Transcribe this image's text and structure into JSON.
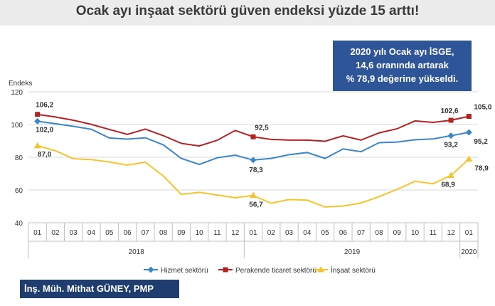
{
  "headline": "Ocak ayı inşaat sektörü güven endeksi yüzde 15 arttı!",
  "callout": [
    "2020 yılı Ocak ayı İSGE,",
    "14,6 oranında artarak",
    "% 78,9 değerine yükseldi."
  ],
  "author": "İnş. Müh. Mithat GÜNEY, PMP",
  "chart_data": {
    "type": "line",
    "ylabel": "Endeks",
    "ylim": [
      40,
      120
    ],
    "yticks": [
      40,
      60,
      80,
      100,
      120
    ],
    "categories": [
      "01",
      "02",
      "03",
      "04",
      "05",
      "06",
      "07",
      "08",
      "09",
      "10",
      "11",
      "12",
      "01",
      "02",
      "03",
      "04",
      "05",
      "06",
      "07",
      "08",
      "09",
      "10",
      "11",
      "12",
      "01"
    ],
    "year_groups": [
      {
        "label": "2018",
        "start": 0,
        "end": 11
      },
      {
        "label": "2019",
        "start": 12,
        "end": 23
      },
      {
        "label": "2020",
        "start": 24,
        "end": 24
      }
    ],
    "grid": true,
    "legend_position": "bottom",
    "series": [
      {
        "name": "Hizmet sektörü",
        "color": "#3d85c6",
        "marker": "diamond",
        "values": [
          102.0,
          100.5,
          98.9,
          97.1,
          91.8,
          91.1,
          91.9,
          87.6,
          79.3,
          75.6,
          79.7,
          81.3,
          78.3,
          79.3,
          81.6,
          82.9,
          79.3,
          85.1,
          83.4,
          88.9,
          89.3,
          90.7,
          91.2,
          93.2,
          95.2
        ]
      },
      {
        "name": "Perakende ticaret sektörü",
        "color": "#b22222",
        "marker": "square",
        "values": [
          106.2,
          104.6,
          102.6,
          100.1,
          97.0,
          94.0,
          97.2,
          93.2,
          88.5,
          86.9,
          90.4,
          96.4,
          92.5,
          90.9,
          90.5,
          90.5,
          89.8,
          93.1,
          90.5,
          94.9,
          97.4,
          102.2,
          101.3,
          102.6,
          105.0
        ]
      },
      {
        "name": "İnşaat sektörü",
        "color": "#f4c430",
        "marker": "triangle",
        "values": [
          87.0,
          84.0,
          79.1,
          78.6,
          77.1,
          75.2,
          77.0,
          68.6,
          57.3,
          58.6,
          56.9,
          55.3,
          56.7,
          51.9,
          54.2,
          53.8,
          49.6,
          50.2,
          52.1,
          55.9,
          60.4,
          65.3,
          63.8,
          68.9,
          78.9
        ]
      }
    ],
    "data_labels": [
      {
        "series": 1,
        "index": 0,
        "text": "106,2"
      },
      {
        "series": 0,
        "index": 0,
        "text": "102,0"
      },
      {
        "series": 2,
        "index": 0,
        "text": "87,0"
      },
      {
        "series": 1,
        "index": 12,
        "text": "92,5"
      },
      {
        "series": 0,
        "index": 12,
        "text": "78,3"
      },
      {
        "series": 2,
        "index": 12,
        "text": "56,7"
      },
      {
        "series": 1,
        "index": 23,
        "text": "102,6"
      },
      {
        "series": 0,
        "index": 23,
        "text": "93,2"
      },
      {
        "series": 2,
        "index": 23,
        "text": "68,9"
      },
      {
        "series": 1,
        "index": 24,
        "text": "105,0"
      },
      {
        "series": 0,
        "index": 24,
        "text": "95,2"
      },
      {
        "series": 2,
        "index": 24,
        "text": "78,9"
      }
    ]
  }
}
